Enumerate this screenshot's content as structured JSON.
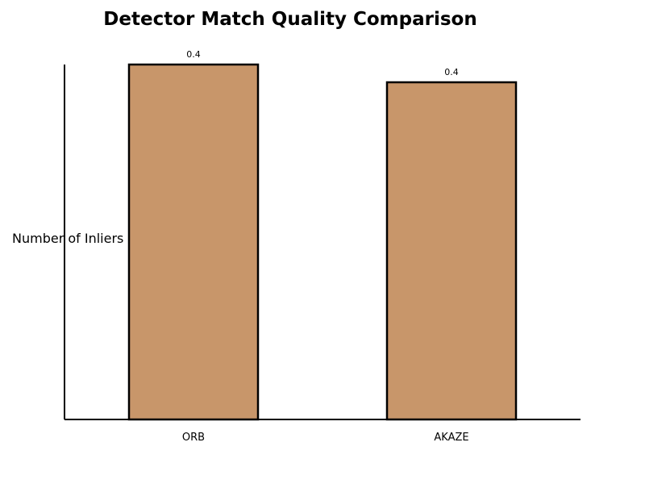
{
  "chart_data": {
    "type": "bar",
    "title": "Detector Match Quality Comparison",
    "xlabel": "",
    "ylabel": "Number of Inliers",
    "categories": [
      "ORB",
      "AKAZE"
    ],
    "values": [
      0.4,
      0.38
    ],
    "data_labels": [
      "0.4",
      "0.4"
    ],
    "ylim": [
      0,
      0.4
    ],
    "grid": false,
    "legend": "none",
    "bar_color": "#c8966a",
    "bar_edge_color": "#000000"
  }
}
